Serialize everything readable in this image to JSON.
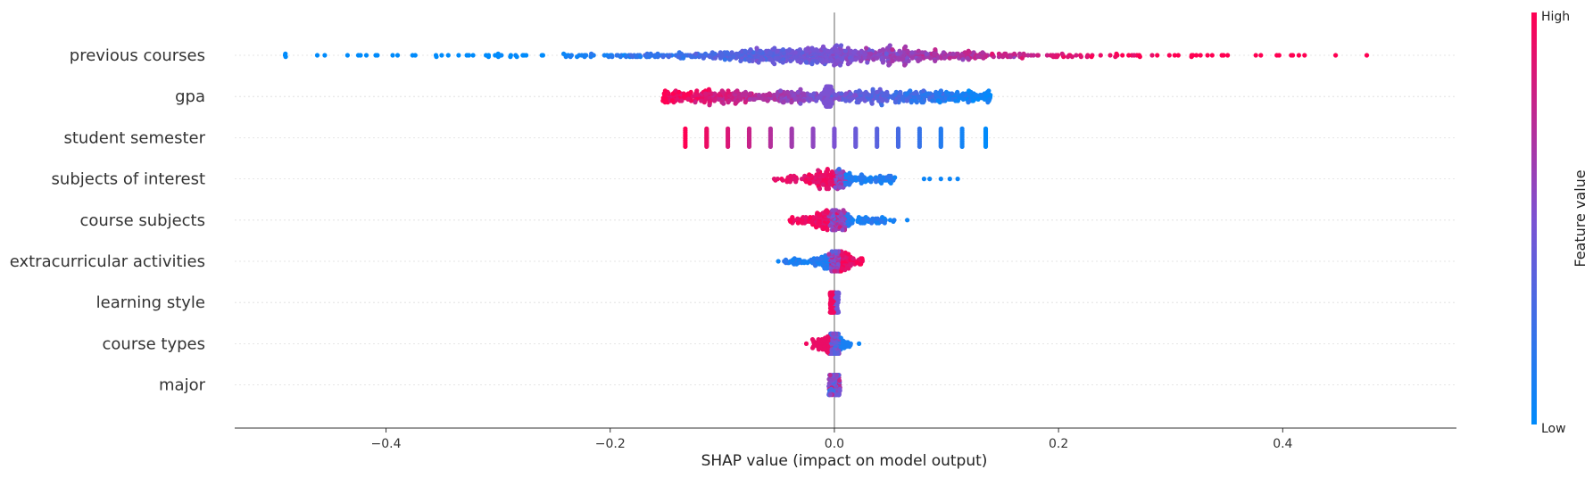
{
  "chart_data": {
    "type": "scatter",
    "subtype": "shap-beeswarm",
    "xlabel": "SHAP value (impact on model output)",
    "xlim": [
      -0.535,
      0.555
    ],
    "x_ticks": [
      -0.4,
      -0.2,
      0.0,
      0.2,
      0.4
    ],
    "x_tick_labels": [
      "−0.4",
      "−0.2",
      "0.0",
      "0.2",
      "0.4"
    ],
    "grid": false,
    "features": [
      {
        "name": "previous courses",
        "min_shap": -0.49,
        "max_shap": 0.505,
        "color_trend": "low-left-high-right"
      },
      {
        "name": "gpa",
        "min_shap": -0.153,
        "max_shap": 0.14,
        "color_trend": "high-left-low-right"
      },
      {
        "name": "student semester",
        "min_shap": -0.133,
        "max_shap": 0.135,
        "discrete_values": [
          -0.133,
          -0.114,
          -0.095,
          -0.076,
          -0.057,
          -0.038,
          -0.019,
          0.0,
          0.019,
          0.038,
          0.057,
          0.076,
          0.095,
          0.114,
          0.135
        ],
        "color_trend": "high-left-low-right"
      },
      {
        "name": "subjects of interest",
        "min_shap": -0.055,
        "max_shap": 0.11,
        "color_trend": "high-left-low-right"
      },
      {
        "name": "course subjects",
        "min_shap": -0.04,
        "max_shap": 0.065,
        "color_trend": "high-left-low-right"
      },
      {
        "name": "extracurricular activities",
        "min_shap": -0.05,
        "max_shap": 0.025,
        "color_trend": "low-left-high-right"
      },
      {
        "name": "learning style",
        "min_shap": -0.004,
        "max_shap": 0.004,
        "color_trend": "high-left-low-right"
      },
      {
        "name": "course types",
        "min_shap": -0.025,
        "max_shap": 0.022,
        "color_trend": "high-left-low-right"
      },
      {
        "name": "major",
        "min_shap": -0.005,
        "max_shap": 0.005,
        "color_trend": "mixed"
      }
    ],
    "colorbar": {
      "title": "Feature value",
      "high_label": "High",
      "low_label": "Low",
      "low_color": "#008bfb",
      "high_color": "#ff0052"
    },
    "zero_line_color": "#999999"
  }
}
